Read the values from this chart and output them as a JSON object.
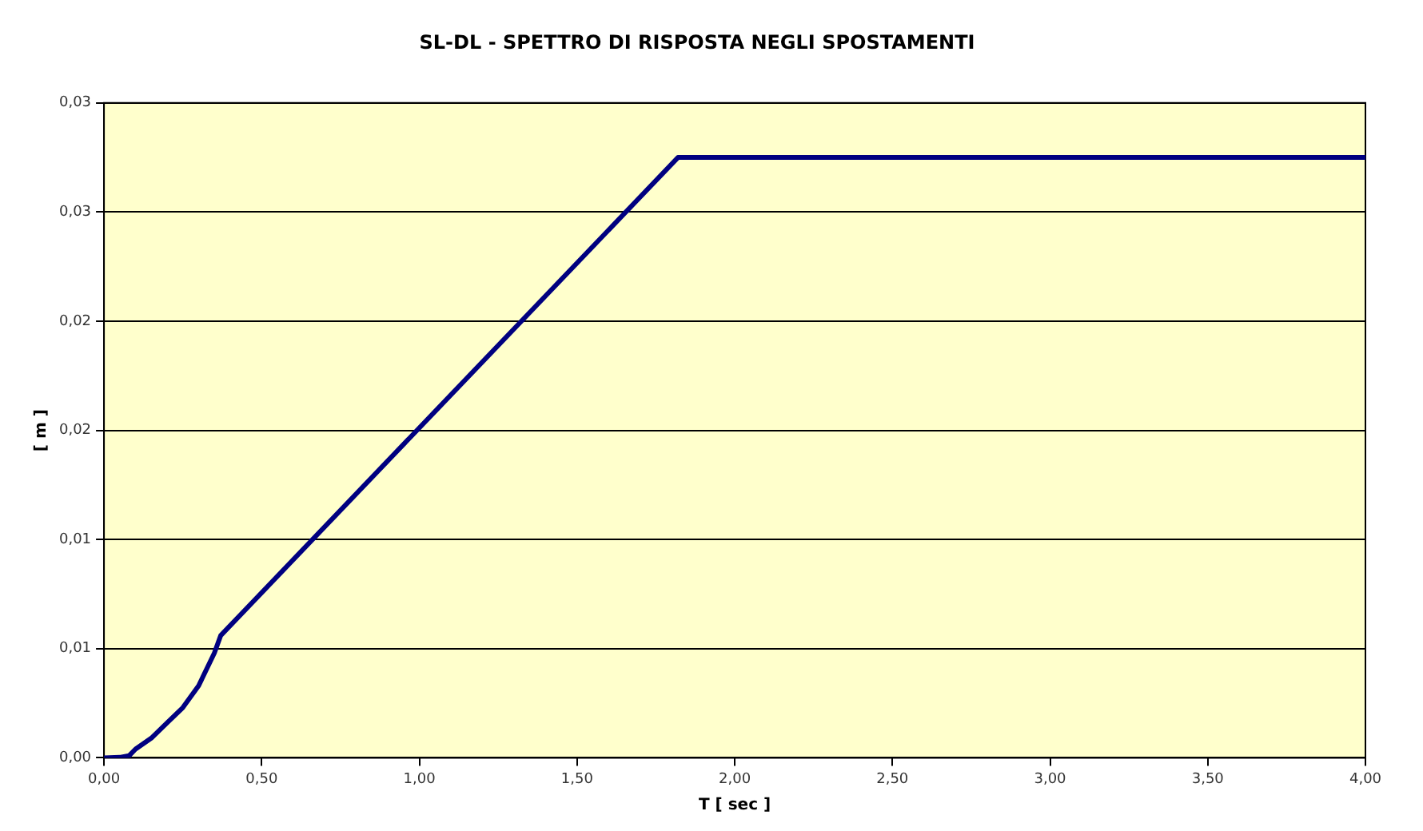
{
  "chart_data": {
    "type": "line",
    "title": "SL-DL - SPETTRO DI RISPOSTA NEGLI SPOSTAMENTI",
    "xlabel": "T [ sec ]",
    "ylabel": "[ m ]",
    "x": [
      0,
      0.05,
      0.08,
      0.1,
      0.15,
      0.2,
      0.25,
      0.3,
      0.35,
      0.37,
      1.82,
      4
    ],
    "series": [
      {
        "color": "#000080",
        "values": [
          0,
          2e-05,
          0.0001,
          0.0004,
          0.0009,
          0.0016,
          0.0023,
          0.0033,
          0.0048,
          0.0056,
          0.0275,
          0.0275
        ]
      }
    ],
    "xlim": [
      0,
      4
    ],
    "xticks": [
      {
        "value": 0,
        "label": "0,00"
      },
      {
        "value": 0.5,
        "label": "0,50"
      },
      {
        "value": 1,
        "label": "1,00"
      },
      {
        "value": 1.5,
        "label": "1,50"
      },
      {
        "value": 2,
        "label": "2,00"
      },
      {
        "value": 2.5,
        "label": "2,50"
      },
      {
        "value": 3,
        "label": "3,00"
      },
      {
        "value": 3.5,
        "label": "3,50"
      },
      {
        "value": 4,
        "label": "4,00"
      }
    ],
    "ylim": [
      0,
      0.03
    ],
    "yticks": [
      {
        "value": 0,
        "label": "0,00"
      },
      {
        "value": 0.005,
        "label": "0,01"
      },
      {
        "value": 0.01,
        "label": "0,01"
      },
      {
        "value": 0.015,
        "label": "0,02"
      },
      {
        "value": 0.02,
        "label": "0,02"
      },
      {
        "value": 0.025,
        "label": "0,03"
      },
      {
        "value": 0.03,
        "label": "0,03"
      }
    ],
    "grid": "y",
    "legend": false,
    "marker": "none",
    "line_style": "solid"
  }
}
